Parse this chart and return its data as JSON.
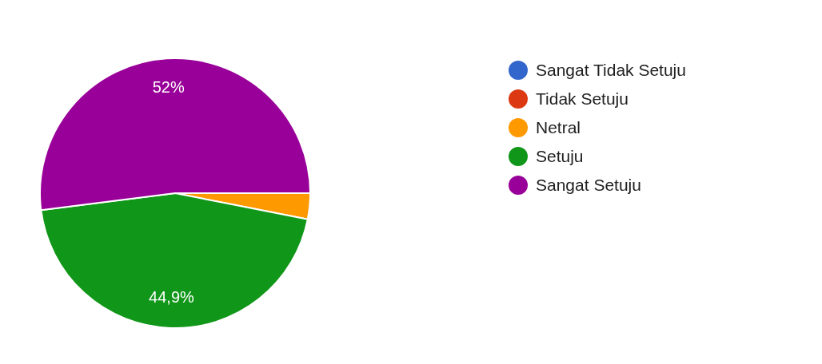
{
  "chart_data": {
    "type": "pie",
    "categories": [
      "Sangat Tidak Setuju",
      "Tidak Setuju",
      "Netral",
      "Setuju",
      "Sangat Setuju"
    ],
    "values": [
      0,
      0,
      3.1,
      44.9,
      52
    ],
    "colors": [
      "#3366cc",
      "#dc3912",
      "#ff9900",
      "#109618",
      "#990099"
    ],
    "value_labels": [
      null,
      null,
      null,
      "44,9%",
      "52%"
    ],
    "legend": "right"
  }
}
